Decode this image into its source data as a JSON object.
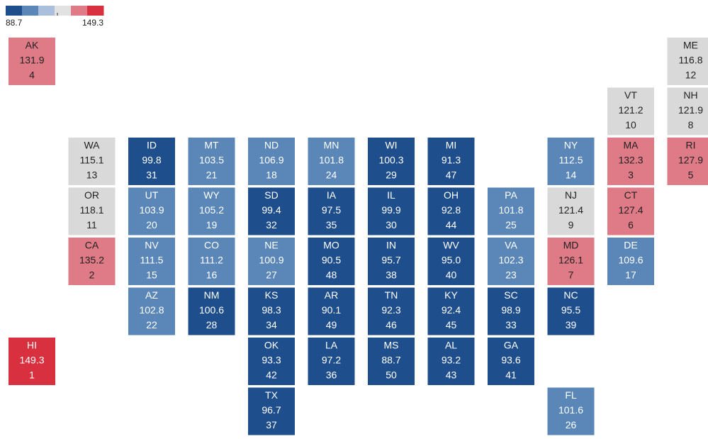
{
  "legend": {
    "min": 88.7,
    "max": 149.3,
    "colors": [
      "#1f4e8c",
      "#5b87b8",
      "#a9bfdc",
      "#e2e2e2",
      "#de7b86",
      "#d9303f"
    ]
  },
  "tiles": [
    {
      "state": "AK",
      "value": 131.9,
      "rank": 4,
      "color": "#de7b86"
    },
    {
      "state": "ME",
      "value": 116.8,
      "rank": 12,
      "color": "#d9d9d9"
    },
    {
      "state": "VT",
      "value": 121.2,
      "rank": 10,
      "color": "#d9d9d9"
    },
    {
      "state": "NH",
      "value": 121.9,
      "rank": 8,
      "color": "#d9d9d9"
    },
    {
      "state": "WA",
      "value": 115.1,
      "rank": 13,
      "color": "#d9d9d9"
    },
    {
      "state": "ID",
      "value": 99.8,
      "rank": 31,
      "color": "#1f4e8c"
    },
    {
      "state": "MT",
      "value": 103.5,
      "rank": 21,
      "color": "#5b87b8"
    },
    {
      "state": "ND",
      "value": 106.9,
      "rank": 18,
      "color": "#5b87b8"
    },
    {
      "state": "MN",
      "value": 101.8,
      "rank": 24,
      "color": "#5b87b8"
    },
    {
      "state": "WI",
      "value": 100.3,
      "rank": 29,
      "color": "#1f4e8c"
    },
    {
      "state": "MI",
      "value": 91.3,
      "rank": 47,
      "color": "#1f4e8c"
    },
    {
      "state": "NY",
      "value": 112.5,
      "rank": 14,
      "color": "#5b87b8"
    },
    {
      "state": "MA",
      "value": 132.3,
      "rank": 3,
      "color": "#de7b86"
    },
    {
      "state": "RI",
      "value": 127.9,
      "rank": 5,
      "color": "#de7b86"
    },
    {
      "state": "OR",
      "value": 118.1,
      "rank": 11,
      "color": "#d9d9d9"
    },
    {
      "state": "UT",
      "value": 103.9,
      "rank": 20,
      "color": "#5b87b8"
    },
    {
      "state": "WY",
      "value": 105.2,
      "rank": 19,
      "color": "#5b87b8"
    },
    {
      "state": "SD",
      "value": 99.4,
      "rank": 32,
      "color": "#1f4e8c"
    },
    {
      "state": "IA",
      "value": 97.5,
      "rank": 35,
      "color": "#1f4e8c"
    },
    {
      "state": "IL",
      "value": 99.9,
      "rank": 30,
      "color": "#1f4e8c"
    },
    {
      "state": "OH",
      "value": 92.8,
      "rank": 44,
      "color": "#1f4e8c"
    },
    {
      "state": "PA",
      "value": 101.8,
      "rank": 25,
      "color": "#5b87b8"
    },
    {
      "state": "NJ",
      "value": 121.4,
      "rank": 9,
      "color": "#d9d9d9"
    },
    {
      "state": "CT",
      "value": 127.4,
      "rank": 6,
      "color": "#de7b86"
    },
    {
      "state": "CA",
      "value": 135.2,
      "rank": 2,
      "color": "#de7b86"
    },
    {
      "state": "NV",
      "value": 111.5,
      "rank": 15,
      "color": "#5b87b8"
    },
    {
      "state": "CO",
      "value": 111.2,
      "rank": 16,
      "color": "#5b87b8"
    },
    {
      "state": "NE",
      "value": 100.9,
      "rank": 27,
      "color": "#5b87b8"
    },
    {
      "state": "MO",
      "value": 90.5,
      "rank": 48,
      "color": "#1f4e8c"
    },
    {
      "state": "IN",
      "value": 95.7,
      "rank": 38,
      "color": "#1f4e8c"
    },
    {
      "state": "WV",
      "value": 95,
      "value_label": "95.0",
      "rank": 40,
      "color": "#1f4e8c"
    },
    {
      "state": "VA",
      "value": 102.3,
      "rank": 23,
      "color": "#5b87b8"
    },
    {
      "state": "MD",
      "value": 126.1,
      "rank": 7,
      "color": "#de7b86"
    },
    {
      "state": "DE",
      "value": 109.6,
      "rank": 17,
      "color": "#5b87b8"
    },
    {
      "state": "AZ",
      "value": 102.8,
      "rank": 22,
      "color": "#5b87b8"
    },
    {
      "state": "NM",
      "value": 100.6,
      "rank": 28,
      "color": "#1f4e8c"
    },
    {
      "state": "KS",
      "value": 98.3,
      "rank": 34,
      "color": "#1f4e8c"
    },
    {
      "state": "AR",
      "value": 90.1,
      "rank": 49,
      "color": "#1f4e8c"
    },
    {
      "state": "TN",
      "value": 92.3,
      "rank": 46,
      "color": "#1f4e8c"
    },
    {
      "state": "KY",
      "value": 92.4,
      "rank": 45,
      "color": "#1f4e8c"
    },
    {
      "state": "SC",
      "value": 98.9,
      "rank": 33,
      "color": "#1f4e8c"
    },
    {
      "state": "NC",
      "value": 95.5,
      "rank": 39,
      "color": "#1f4e8c"
    },
    {
      "state": "HI",
      "value": 149.3,
      "rank": 1,
      "color": "#d9303f"
    },
    {
      "state": "OK",
      "value": 93.3,
      "rank": 42,
      "color": "#1f4e8c"
    },
    {
      "state": "LA",
      "value": 97.2,
      "rank": 36,
      "color": "#1f4e8c"
    },
    {
      "state": "MS",
      "value": 88.7,
      "rank": 50,
      "color": "#1f4e8c"
    },
    {
      "state": "AL",
      "value": 93.2,
      "rank": 43,
      "color": "#1f4e8c"
    },
    {
      "state": "GA",
      "value": 93.6,
      "rank": 41,
      "color": "#1f4e8c"
    },
    {
      "state": "TX",
      "value": 96.7,
      "rank": 37,
      "color": "#1f4e8c"
    },
    {
      "state": "FL",
      "value": 101.6,
      "rank": 26,
      "color": "#5b87b8"
    }
  ]
}
